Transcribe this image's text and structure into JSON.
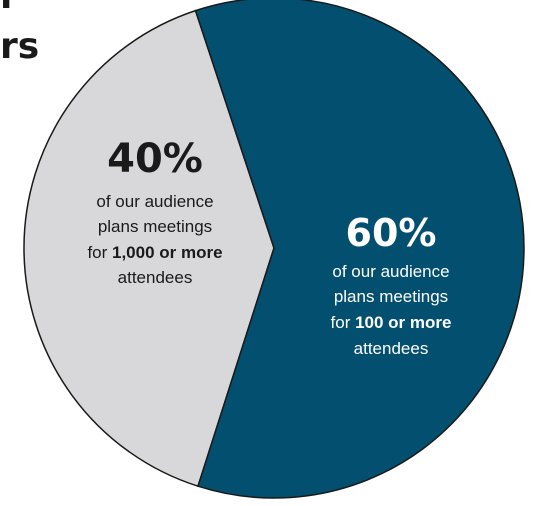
{
  "title_fragments": [
    "r",
    "rs"
  ],
  "chart_data": {
    "type": "pie",
    "slices": [
      {
        "value": 40,
        "percent_label": "40%",
        "line1": "of our audience",
        "line2": "plans meetings",
        "line3_prefix": "for ",
        "line3_bold": "1,000 or more",
        "line4": "attendees",
        "color": "#d8d8da",
        "text_color": "#1a1a1a"
      },
      {
        "value": 60,
        "percent_label": "60%",
        "line1": "of our audience",
        "line2": "plans meetings",
        "line3_prefix": "for ",
        "line3_bold": "100 or more",
        "line4": "attendees",
        "color": "#034f70",
        "text_color": "#ffffff"
      }
    ],
    "stroke_color": "#1a1a1a"
  }
}
